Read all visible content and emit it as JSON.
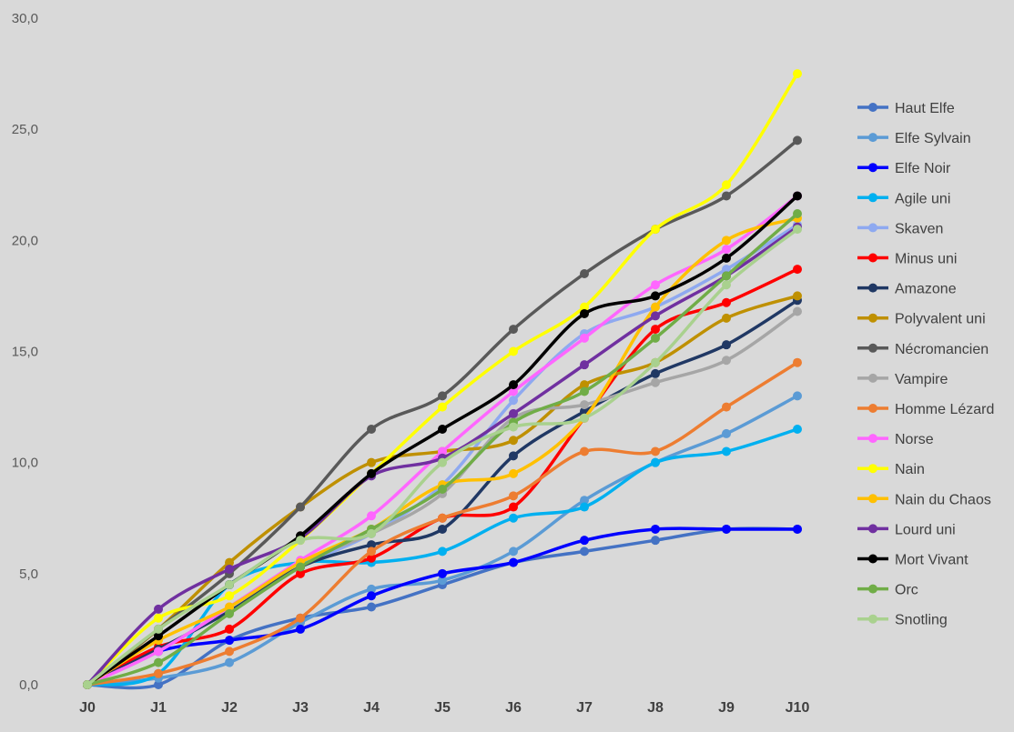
{
  "chart_data": {
    "type": "line",
    "title": "",
    "xlabel": "",
    "ylabel": "",
    "categories": [
      "J0",
      "J1",
      "J2",
      "J3",
      "J4",
      "J5",
      "J6",
      "J7",
      "J8",
      "J9",
      "J10"
    ],
    "ylim": [
      0,
      30
    ],
    "y_ticks": [
      "0,0",
      "5,0",
      "10,0",
      "15,0",
      "20,0",
      "25,0",
      "30,0"
    ],
    "grid": false,
    "smooth": true,
    "legend_position": "right",
    "series": [
      {
        "name": "Haut Elfe",
        "color": "#4472c4",
        "values": [
          0,
          0,
          2,
          3,
          3.5,
          4.5,
          5.5,
          6,
          6.5,
          7,
          7
        ]
      },
      {
        "name": "Elfe Sylvain",
        "color": "#5b9bd5",
        "values": [
          0,
          0.3,
          1,
          2.8,
          4.3,
          4.7,
          6,
          8.3,
          10,
          11.3,
          13
        ]
      },
      {
        "name": "Elfe Noir",
        "color": "#0000ff",
        "values": [
          0,
          1.5,
          2,
          2.5,
          4,
          5,
          5.5,
          6.5,
          7,
          7,
          7
        ]
      },
      {
        "name": "Agile uni",
        "color": "#00b0f0",
        "values": [
          0,
          0.5,
          4.5,
          5.5,
          5.5,
          6,
          7.5,
          8,
          10,
          10.5,
          11.5
        ]
      },
      {
        "name": "Skaven",
        "color": "#8ea9f0",
        "values": [
          0,
          1.6,
          3.3,
          5.3,
          6.8,
          9,
          12.8,
          15.8,
          17,
          18.7,
          20.7
        ]
      },
      {
        "name": "Minus uni",
        "color": "#ff0000",
        "values": [
          0,
          1.7,
          2.5,
          5,
          5.7,
          7.5,
          8,
          12,
          16,
          17.2,
          18.7
        ]
      },
      {
        "name": "Amazone",
        "color": "#203864",
        "values": [
          0,
          1.6,
          3.3,
          5.3,
          6.3,
          7,
          10.3,
          12.3,
          14,
          15.3,
          17.3
        ]
      },
      {
        "name": "Polyvalent uni",
        "color": "#bf9000",
        "values": [
          0,
          2.5,
          5.5,
          8,
          10,
          10.5,
          11,
          13.5,
          14.5,
          16.5,
          17.5
        ]
      },
      {
        "name": "Nécromancien",
        "color": "#595959",
        "values": [
          0,
          2.5,
          5,
          8,
          11.5,
          13,
          16,
          18.5,
          20.5,
          22,
          24.5
        ]
      },
      {
        "name": "Vampire",
        "color": "#a6a6a6",
        "values": [
          0,
          1.5,
          3.5,
          5.5,
          6.8,
          8.6,
          12,
          12.6,
          13.6,
          14.6,
          16.8
        ]
      },
      {
        "name": "Homme Lézard",
        "color": "#ed7d31",
        "values": [
          0,
          0.5,
          1.5,
          3,
          6,
          7.5,
          8.5,
          10.5,
          10.5,
          12.5,
          14.5
        ]
      },
      {
        "name": "Norse",
        "color": "#ff66ff",
        "values": [
          0,
          1.5,
          3.5,
          5.6,
          7.6,
          10.5,
          13.2,
          15.6,
          18,
          19.6,
          22
        ]
      },
      {
        "name": "Nain",
        "color": "#ffff00",
        "values": [
          0,
          3,
          4,
          6.5,
          9.5,
          12.5,
          15,
          17,
          20.5,
          22.5,
          27.5
        ]
      },
      {
        "name": "Nain du Chaos",
        "color": "#ffc000",
        "values": [
          0,
          2,
          3.5,
          5.5,
          7,
          9,
          9.5,
          12,
          17,
          20,
          21
        ]
      },
      {
        "name": "Lourd uni",
        "color": "#7030a0",
        "values": [
          0,
          3.4,
          5.2,
          6.6,
          9.4,
          10.2,
          12.2,
          14.4,
          16.6,
          18.4,
          20.6
        ]
      },
      {
        "name": "Mort Vivant",
        "color": "#000000",
        "values": [
          0,
          2.2,
          4.5,
          6.7,
          9.5,
          11.5,
          13.5,
          16.7,
          17.5,
          19.2,
          22
        ]
      },
      {
        "name": "Orc",
        "color": "#70ad47",
        "values": [
          0,
          1,
          3.2,
          5.3,
          7,
          8.8,
          11.8,
          13.2,
          15.6,
          18.4,
          21.2
        ]
      },
      {
        "name": "Snotling",
        "color": "#a9d18e",
        "values": [
          0,
          2.5,
          4.5,
          6.5,
          6.8,
          10,
          11.6,
          12,
          14.5,
          18,
          20.5
        ]
      }
    ]
  }
}
